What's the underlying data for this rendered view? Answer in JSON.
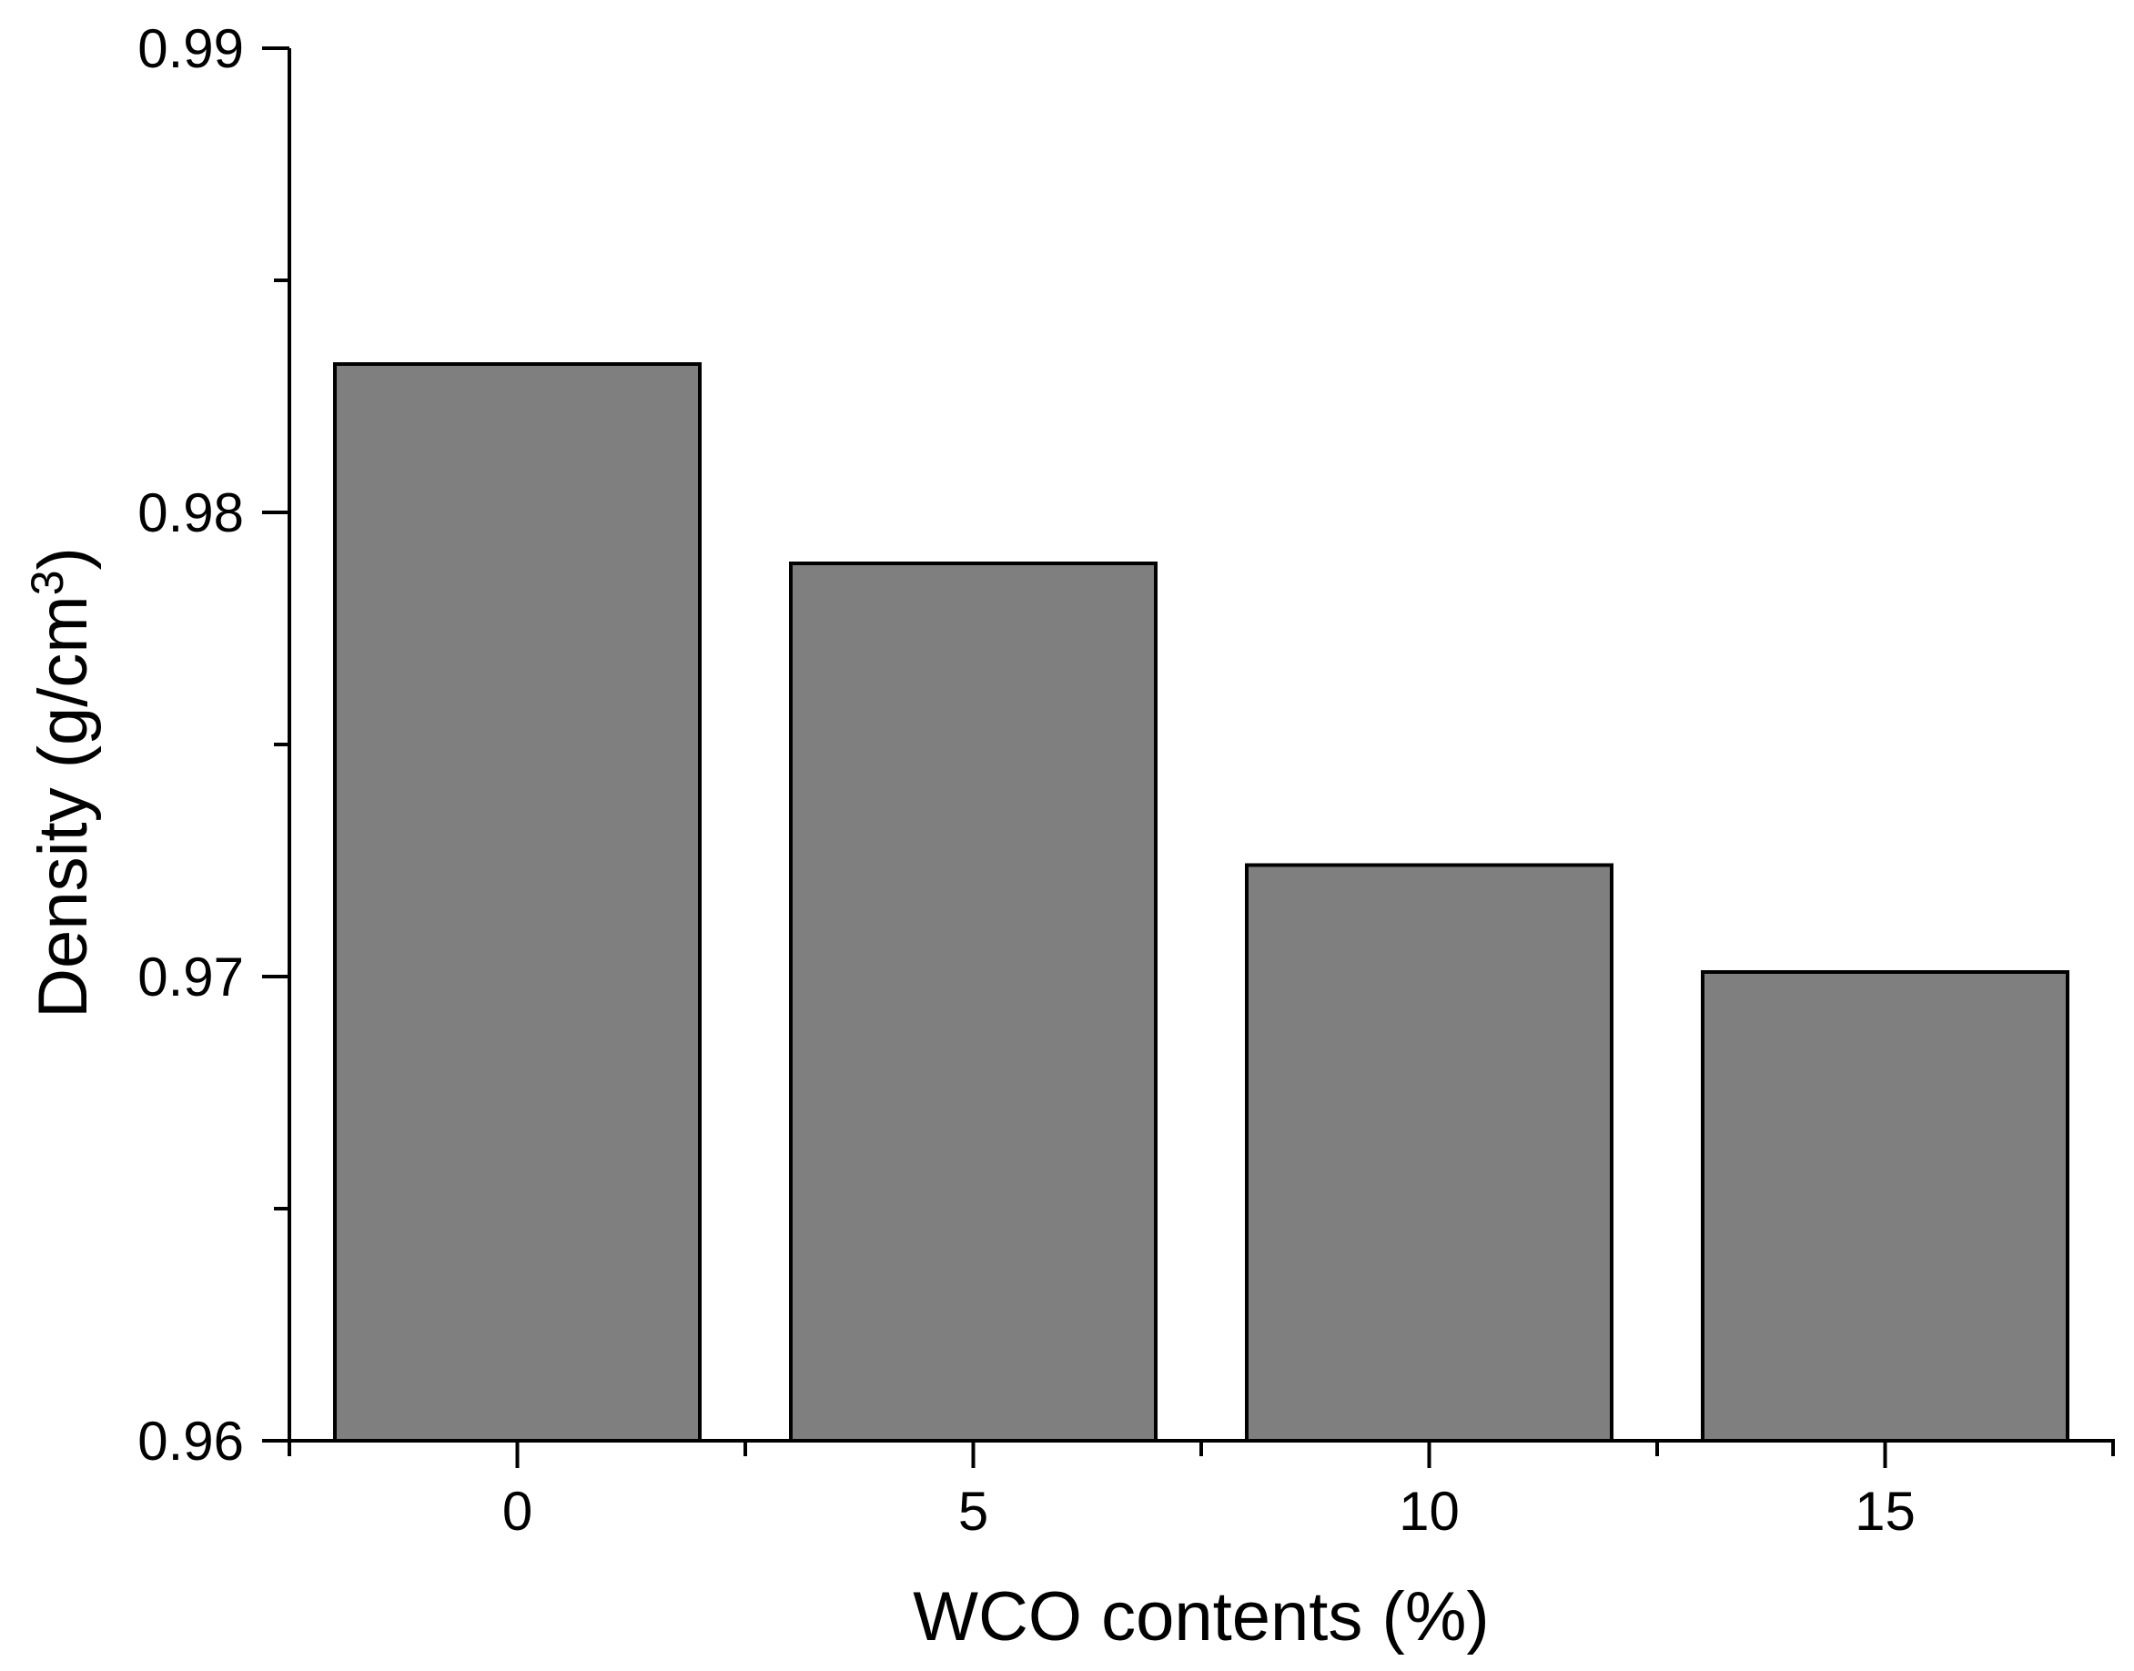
{
  "chart_data": {
    "type": "bar",
    "title": "",
    "categories": [
      "0",
      "5",
      "10",
      "15"
    ],
    "values": [
      0.9832,
      0.9789,
      0.9724,
      0.9701
    ],
    "xlabel": "WCO contents (%)",
    "ylabel": {
      "prefix": "Density (g/cm",
      "sup": "3",
      "suffix": ")"
    },
    "ylim": [
      0.96,
      0.99
    ],
    "yticks": [
      0.96,
      0.97,
      0.98,
      0.99
    ],
    "ytick_labels": [
      "0.96",
      "0.97",
      "0.98",
      "0.99"
    ],
    "yminor_ticks": [
      0.965,
      0.975,
      0.985
    ],
    "grid": false,
    "legend": false,
    "bar_color": "#7f7f7f",
    "bar_border_color": "#000000",
    "axis_color": "#000000",
    "text_color": "#000000",
    "background_color": "#ffffff"
  }
}
